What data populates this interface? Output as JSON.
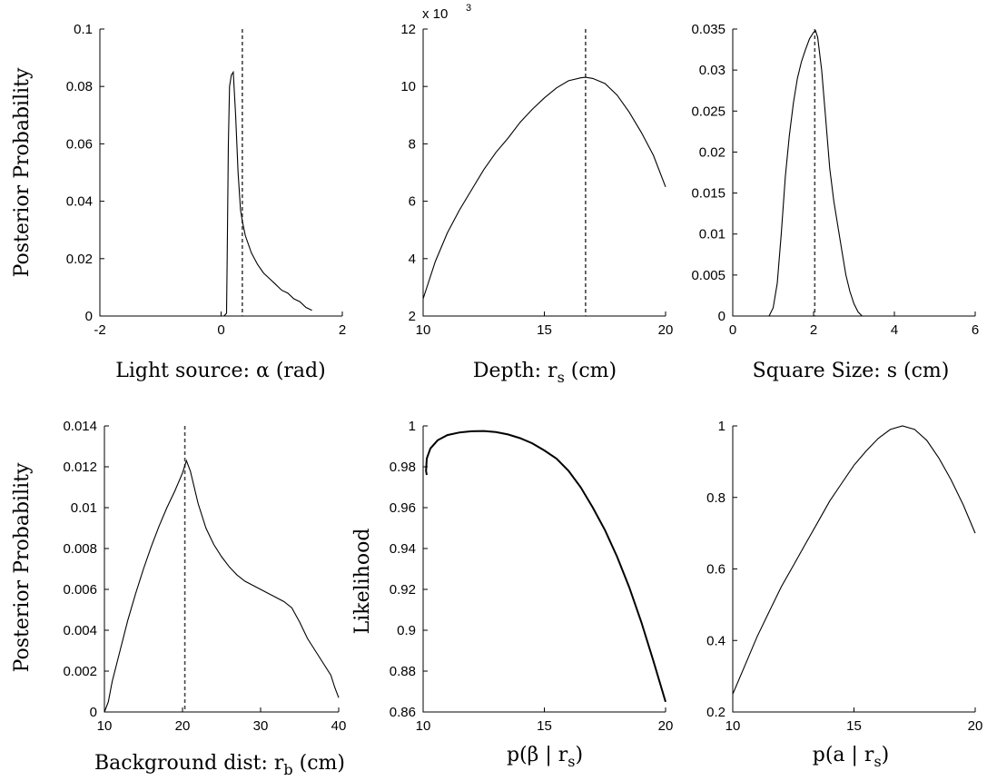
{
  "chart_data": [
    {
      "type": "line",
      "xlabel": "Light source:  α (rad)",
      "ylabel": "Posterior Probability",
      "xlim": [
        -2,
        2
      ],
      "ylim": [
        0,
        0.1
      ],
      "x_ticks": [
        "-2",
        "0",
        "2"
      ],
      "y_ticks": [
        "0",
        "0.02",
        "0.04",
        "0.06",
        "0.08",
        "0.1"
      ],
      "reference_line_x": 0.35,
      "series": [
        {
          "x": [
            0.05,
            0.09,
            0.1,
            0.12,
            0.14,
            0.17,
            0.2,
            0.24,
            0.28,
            0.32,
            0.35,
            0.4,
            0.5,
            0.6,
            0.7,
            0.8,
            0.9,
            1.0,
            1.1,
            1.2,
            1.3,
            1.4,
            1.45,
            1.5
          ],
          "y": [
            0,
            0.001,
            0.02,
            0.06,
            0.08,
            0.084,
            0.085,
            0.07,
            0.05,
            0.037,
            0.033,
            0.028,
            0.022,
            0.018,
            0.015,
            0.013,
            0.011,
            0.009,
            0.008,
            0.006,
            0.005,
            0.003,
            0.0025,
            0.002
          ]
        }
      ]
    },
    {
      "type": "line",
      "xlabel": "Depth:  r",
      "xlabel_sub": "s",
      "xlabel_unit": " (cm)",
      "ylabel": "",
      "xlim": [
        10,
        20
      ],
      "ylim": [
        2,
        12
      ],
      "y_multiplier": "x 10",
      "y_multiplier_exp": "3",
      "x_ticks": [
        "10",
        "15",
        "20"
      ],
      "y_ticks": [
        "2",
        "4",
        "6",
        "8",
        "10",
        "12"
      ],
      "reference_line_x": 16.7,
      "series": [
        {
          "x": [
            10,
            10.5,
            11,
            11.5,
            12,
            12.5,
            13,
            13.5,
            14,
            14.5,
            15,
            15.5,
            16,
            16.5,
            16.7,
            17,
            17.5,
            18,
            18.5,
            19,
            19.5,
            20
          ],
          "y": [
            2.6,
            3.9,
            4.9,
            5.7,
            6.4,
            7.1,
            7.7,
            8.2,
            8.75,
            9.2,
            9.6,
            9.95,
            10.2,
            10.3,
            10.32,
            10.28,
            10.1,
            9.7,
            9.1,
            8.4,
            7.6,
            6.5
          ]
        }
      ]
    },
    {
      "type": "line",
      "xlabel": "Square Size:  s (cm)",
      "ylabel": "",
      "xlim": [
        0,
        6
      ],
      "ylim": [
        0,
        0.035
      ],
      "x_ticks": [
        "0",
        "2",
        "4",
        "6"
      ],
      "y_ticks": [
        "0",
        "0.005",
        "0.01",
        "0.015",
        "0.02",
        "0.025",
        "0.03",
        "0.035"
      ],
      "reference_line_x": 2.03,
      "series": [
        {
          "x": [
            0.9,
            1.0,
            1.1,
            1.2,
            1.3,
            1.4,
            1.5,
            1.6,
            1.7,
            1.8,
            1.9,
            2.0,
            2.05,
            2.1,
            2.2,
            2.3,
            2.4,
            2.5,
            2.6,
            2.7,
            2.8,
            2.9,
            3.0,
            3.1,
            3.2
          ],
          "y": [
            0,
            0.001,
            0.004,
            0.01,
            0.017,
            0.022,
            0.026,
            0.029,
            0.031,
            0.0325,
            0.0338,
            0.0346,
            0.0348,
            0.034,
            0.03,
            0.024,
            0.018,
            0.014,
            0.011,
            0.008,
            0.005,
            0.003,
            0.0015,
            0.0005,
            0
          ]
        }
      ]
    },
    {
      "type": "line",
      "xlabel": "Background dist:  r",
      "xlabel_sub": "b",
      "xlabel_unit": " (cm)",
      "ylabel": "Posterior Probability",
      "xlim": [
        10,
        40
      ],
      "ylim": [
        0,
        0.014
      ],
      "x_ticks": [
        "10",
        "20",
        "30",
        "40"
      ],
      "y_ticks": [
        "0",
        "0.002",
        "0.004",
        "0.006",
        "0.008",
        "0.01",
        "0.012",
        "0.014"
      ],
      "reference_line_x": 20.3,
      "series": [
        {
          "x": [
            10,
            10.5,
            11,
            12,
            13,
            14,
            15,
            16,
            17,
            18,
            19,
            20,
            20.5,
            21,
            22,
            23,
            24,
            25,
            26,
            27,
            28,
            29,
            30,
            31,
            32,
            33,
            34,
            35,
            36,
            37,
            38,
            39,
            39.5,
            40
          ],
          "y": [
            0,
            0.0005,
            0.0015,
            0.003,
            0.0045,
            0.0058,
            0.007,
            0.0081,
            0.0091,
            0.01,
            0.0108,
            0.0117,
            0.0123,
            0.0118,
            0.0102,
            0.009,
            0.0082,
            0.0076,
            0.0071,
            0.0067,
            0.0064,
            0.0062,
            0.006,
            0.0058,
            0.0056,
            0.0054,
            0.0051,
            0.0044,
            0.0036,
            0.003,
            0.0024,
            0.0018,
            0.0012,
            0.0007
          ]
        }
      ]
    },
    {
      "type": "line",
      "xlabel": "p(β | r",
      "xlabel_sub": "s",
      "xlabel_unit": ")",
      "ylabel": "Likelihood",
      "xlim": [
        10,
        20
      ],
      "ylim": [
        0.86,
        1
      ],
      "x_ticks": [
        "10",
        "15",
        "20"
      ],
      "y_ticks": [
        "0.86",
        "0.88",
        "0.9",
        "0.92",
        "0.94",
        "0.96",
        "0.98",
        "1"
      ],
      "series": [
        {
          "x": [
            10.15,
            10.12,
            10.15,
            10.3,
            10.6,
            11,
            11.5,
            12,
            12.5,
            13,
            13.5,
            14,
            14.5,
            15,
            15.5,
            16,
            16.5,
            17,
            17.5,
            18,
            18.5,
            19,
            19.5,
            20
          ],
          "y": [
            0.976,
            0.978,
            0.984,
            0.989,
            0.993,
            0.9955,
            0.9968,
            0.9974,
            0.9975,
            0.997,
            0.9958,
            0.994,
            0.9915,
            0.988,
            0.984,
            0.978,
            0.97,
            0.96,
            0.949,
            0.936,
            0.921,
            0.904,
            0.885,
            0.865
          ]
        }
      ]
    },
    {
      "type": "line",
      "xlabel": "p(a | r",
      "xlabel_sub": "s",
      "xlabel_unit": ")",
      "ylabel": "",
      "xlim": [
        10,
        20
      ],
      "ylim": [
        0.2,
        1
      ],
      "x_ticks": [
        "10",
        "15",
        "20"
      ],
      "y_ticks": [
        "0.2",
        "0.4",
        "0.6",
        "0.8",
        "1"
      ],
      "series": [
        {
          "x": [
            10,
            10.5,
            11,
            11.5,
            12,
            12.5,
            13,
            13.5,
            14,
            14.5,
            15,
            15.5,
            16,
            16.5,
            17,
            17.5,
            18,
            18.5,
            19,
            19.5,
            20
          ],
          "y": [
            0.25,
            0.33,
            0.41,
            0.48,
            0.55,
            0.61,
            0.67,
            0.73,
            0.79,
            0.84,
            0.89,
            0.93,
            0.965,
            0.99,
            1.0,
            0.99,
            0.96,
            0.91,
            0.85,
            0.78,
            0.7
          ]
        }
      ]
    }
  ]
}
